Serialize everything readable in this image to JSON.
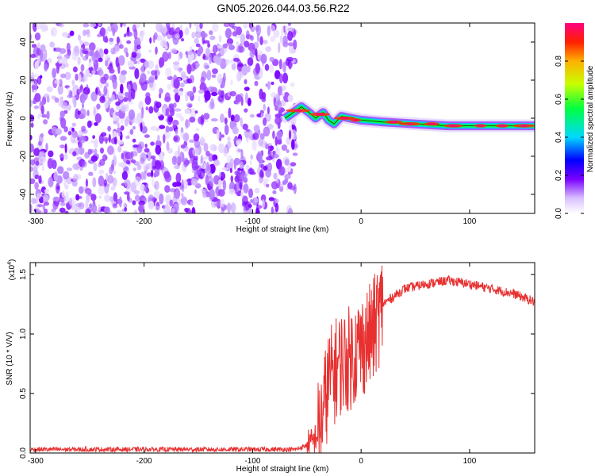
{
  "title": "GN05.2026.044.03.56.R22",
  "chart_data": [
    {
      "type": "heatmap",
      "name": "spectrogram",
      "xlabel": "Height of straight line (km)",
      "ylabel": "Frequency (Hz)",
      "xlim": [
        -305,
        160
      ],
      "ylim": [
        -50,
        50
      ],
      "x_ticks": [
        -300,
        -200,
        -100,
        0,
        100
      ],
      "y_ticks": [
        -40,
        -20,
        0,
        20,
        40
      ],
      "noise_region_x": [
        -305,
        -60
      ],
      "signal_track": [
        {
          "x": -70,
          "y": 0
        },
        {
          "x": -60,
          "y": 4
        },
        {
          "x": -55,
          "y": 6
        },
        {
          "x": -48,
          "y": 3
        },
        {
          "x": -42,
          "y": 0
        },
        {
          "x": -35,
          "y": 3
        },
        {
          "x": -30,
          "y": -1
        },
        {
          "x": -25,
          "y": -3
        },
        {
          "x": -18,
          "y": 1
        },
        {
          "x": -10,
          "y": 0
        },
        {
          "x": 0,
          "y": -1
        },
        {
          "x": 20,
          "y": -2
        },
        {
          "x": 50,
          "y": -3
        },
        {
          "x": 80,
          "y": -4
        },
        {
          "x": 120,
          "y": -4
        },
        {
          "x": 160,
          "y": -4
        }
      ]
    },
    {
      "type": "colorbar",
      "name": "colorbar",
      "label": "Normalized spectral amplitude",
      "range": [
        0,
        1
      ],
      "ticks": [
        "0.0",
        "0.2",
        "0.4",
        "0.6",
        "0.8"
      ]
    },
    {
      "type": "line",
      "name": "snr-plot",
      "xlabel": "Height of straight line (km)",
      "ylabel": "SNR (10 * V/V)",
      "exponent_label": "(x10",
      "exponent_value": "4",
      "xlim": [
        -305,
        160
      ],
      "ylim": [
        0,
        1.6
      ],
      "x_ticks": [
        -300,
        -200,
        -100,
        0,
        100
      ],
      "y_ticks": [
        "0.0",
        "0.5",
        "1.0",
        "1.5"
      ],
      "color": "#e83030",
      "series": [
        {
          "x": -305,
          "y": 0.03
        },
        {
          "x": -100,
          "y": 0.03
        },
        {
          "x": -60,
          "y": 0.03
        },
        {
          "x": -45,
          "y": 0.08
        },
        {
          "x": -38,
          "y": 0.2
        },
        {
          "x": -30,
          "y": 0.6
        },
        {
          "x": -20,
          "y": 0.75
        },
        {
          "x": -10,
          "y": 0.8
        },
        {
          "x": 0,
          "y": 0.9
        },
        {
          "x": 10,
          "y": 1.0
        },
        {
          "x": 20,
          "y": 1.25
        },
        {
          "x": 40,
          "y": 1.38
        },
        {
          "x": 60,
          "y": 1.42
        },
        {
          "x": 80,
          "y": 1.45
        },
        {
          "x": 100,
          "y": 1.42
        },
        {
          "x": 120,
          "y": 1.38
        },
        {
          "x": 140,
          "y": 1.34
        },
        {
          "x": 160,
          "y": 1.27
        }
      ]
    }
  ]
}
